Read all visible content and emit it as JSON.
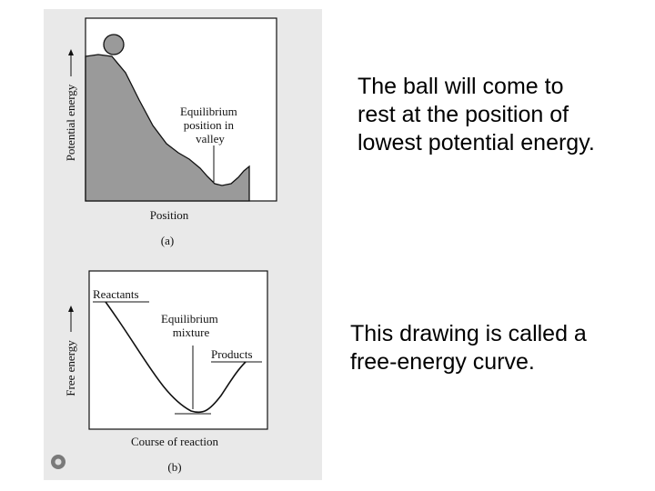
{
  "panel_a": {
    "y_axis_label": "Potential energy",
    "x_axis_label": "Position",
    "annotation_lines": [
      "Equilibrium",
      "position in",
      "valley"
    ],
    "sublabel": "(a)"
  },
  "panel_b": {
    "y_axis_label": "Free energy",
    "x_axis_label": "Course of reaction",
    "reactants_label": "Reactants",
    "equilibrium_lines": [
      "Equilibrium",
      "mixture"
    ],
    "products_label": "Products",
    "sublabel": "(b)"
  },
  "caption_top": {
    "lines": [
      "The ball will come to",
      "rest at the position of",
      "lowest potential energy."
    ]
  },
  "caption_bottom": {
    "lines": [
      "This drawing is called a",
      "free-energy curve."
    ]
  },
  "colors": {
    "fill_gray": "#9a9a9a",
    "scan_background": "#e9e9e9",
    "ink": "#111111"
  }
}
